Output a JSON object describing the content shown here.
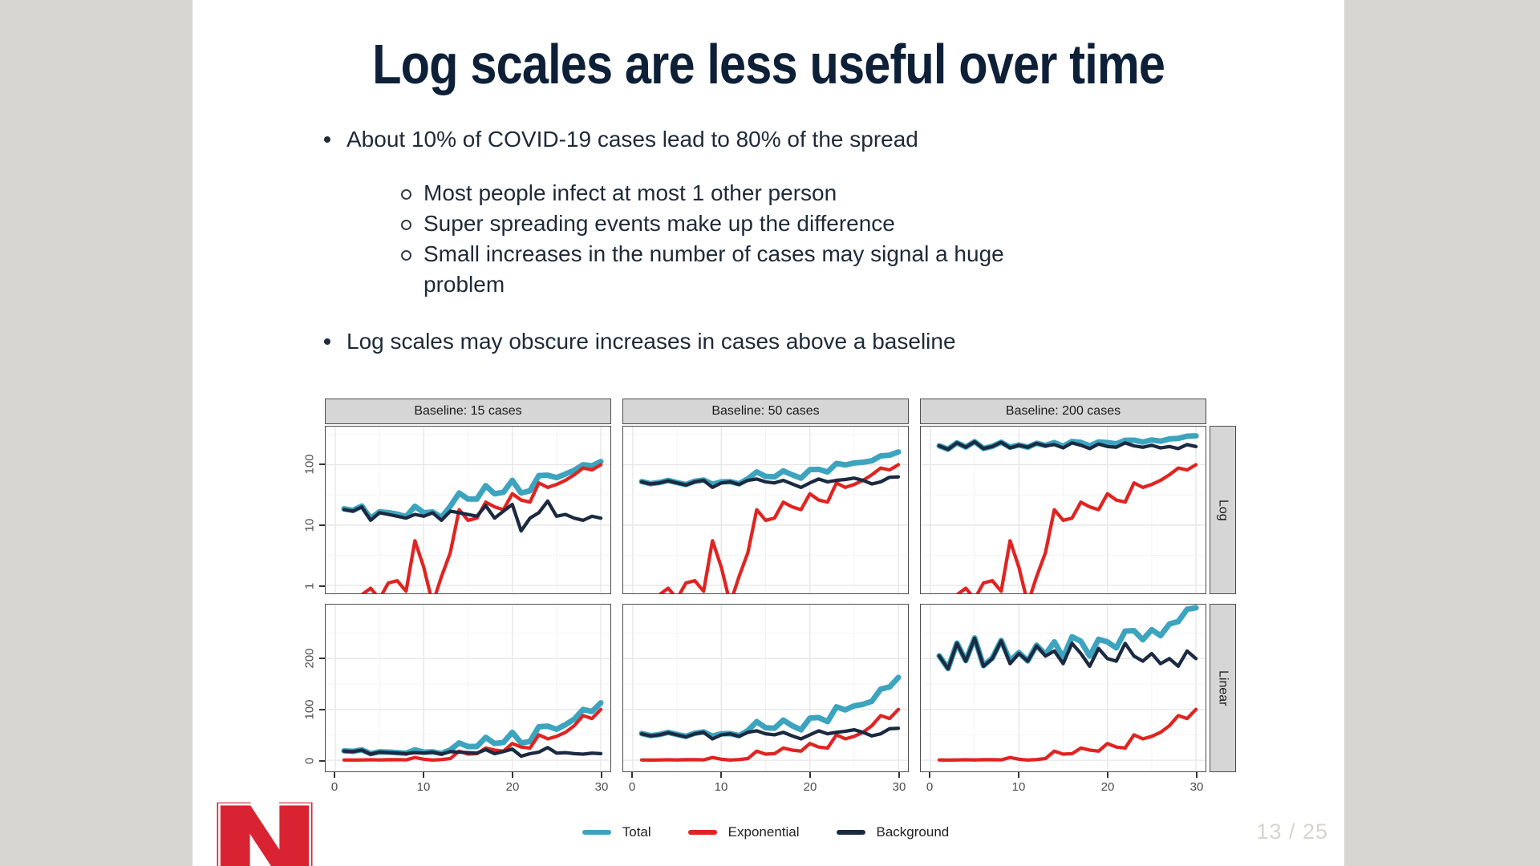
{
  "slide": {
    "title": "Log scales are less useful over time",
    "bullets": [
      {
        "text": "About 10% of COVID-19 cases lead to 80% of the spread",
        "sub": [
          "Most people infect at most 1 other person",
          "Super spreading events make up the difference",
          "Small increases in the number of cases may signal a huge\nproblem"
        ]
      },
      {
        "text": "Log scales may obscure increases in cases above a baseline"
      }
    ],
    "page_number": "13 / 25",
    "logo": "nebraska-n-logo",
    "logo_color": "#d92332"
  },
  "chart_data": {
    "type": "line",
    "facet_columns": [
      "Baseline: 15 cases",
      "Baseline: 50 cases",
      "Baseline: 200 cases"
    ],
    "facet_rows": [
      "Log",
      "Linear"
    ],
    "x_label_ticks": [
      "0",
      "10",
      "20",
      "30"
    ],
    "x_ticks": [
      0,
      10,
      20,
      30
    ],
    "log_y_ticks": [
      "100",
      "10",
      "1"
    ],
    "linear_y_ticks": [
      "200",
      "100",
      "0"
    ],
    "log_ylim": [
      0.74,
      430
    ],
    "linear_ylim": [
      0,
      306
    ],
    "xlim": [
      0,
      30
    ],
    "grid": true,
    "legend_position": "bottom",
    "legend": [
      {
        "label": "Total",
        "color": "#3da4bf"
      },
      {
        "label": "Exponential",
        "color": "#e02421"
      },
      {
        "label": "Background",
        "color": "#1b2a41"
      }
    ],
    "x": [
      1,
      2,
      3,
      4,
      5,
      6,
      7,
      8,
      9,
      10,
      11,
      12,
      13,
      14,
      15,
      16,
      17,
      18,
      19,
      20,
      21,
      22,
      23,
      24,
      25,
      26,
      27,
      28,
      29,
      30
    ],
    "exponential": [
      0.6,
      0.5,
      0.7,
      0.9,
      0.6,
      1.1,
      1.2,
      0.8,
      5.5,
      2,
      0.5,
      1.4,
      3.5,
      18,
      12,
      13,
      24,
      20,
      18,
      33,
      26,
      24,
      50,
      42,
      47,
      55,
      68,
      88,
      82,
      100
    ],
    "panels": [
      {
        "baseline": 15,
        "background": [
          18,
          17,
          20,
          12,
          16,
          15,
          14,
          13,
          15,
          14,
          16,
          12,
          17,
          16,
          15,
          14,
          21,
          13,
          17,
          22,
          8,
          13,
          16,
          25,
          14,
          15,
          13,
          12,
          14,
          13
        ],
        "total": [
          18.6,
          17.5,
          20.7,
          12.9,
          16.6,
          16.1,
          15.2,
          13.8,
          20.5,
          16,
          16.5,
          13.4,
          20.5,
          34,
          27,
          27,
          45,
          33,
          35,
          55,
          34,
          37,
          66,
          67,
          61,
          70,
          81,
          100,
          96,
          113
        ]
      },
      {
        "baseline": 50,
        "background": [
          52,
          48,
          50,
          54,
          50,
          46,
          52,
          55,
          42,
          50,
          52,
          47,
          55,
          58,
          52,
          50,
          55,
          48,
          42,
          50,
          58,
          52,
          55,
          57,
          60,
          55,
          48,
          52,
          62,
          63
        ],
        "total": [
          52.6,
          48.5,
          50.7,
          54.9,
          50.6,
          47.1,
          53.2,
          55.8,
          47.5,
          52,
          52.5,
          48.4,
          58.5,
          76,
          64,
          63,
          79,
          68,
          60,
          83,
          84,
          76,
          105,
          99,
          107,
          110,
          116,
          140,
          144,
          163
        ]
      },
      {
        "baseline": 200,
        "background": [
          205,
          180,
          230,
          195,
          240,
          185,
          200,
          235,
          190,
          210,
          195,
          225,
          205,
          215,
          190,
          230,
          210,
          185,
          220,
          200,
          195,
          230,
          205,
          195,
          210,
          190,
          200,
          185,
          215,
          200
        ],
        "total": [
          205.6,
          180.5,
          230.7,
          195.9,
          240.6,
          186.1,
          201.2,
          235.8,
          195.5,
          212,
          195.5,
          226.4,
          208.5,
          233,
          202,
          243,
          234,
          205,
          238,
          233,
          221,
          254,
          255,
          237,
          257,
          245,
          268,
          273,
          297,
          300
        ]
      }
    ]
  }
}
